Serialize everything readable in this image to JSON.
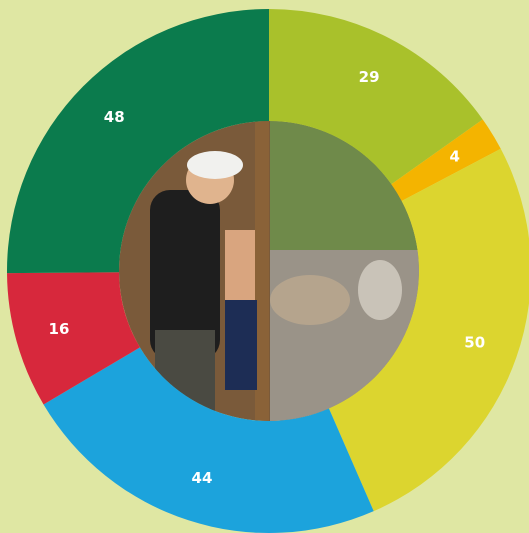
{
  "chart_data": {
    "type": "donut",
    "values": [
      29,
      4,
      50,
      44,
      16,
      48
    ],
    "colors": [
      "#a9c12b",
      "#f4b400",
      "#dcd52f",
      "#1ca3dc",
      "#d7283c",
      "#0b7b4d"
    ]
  }
}
